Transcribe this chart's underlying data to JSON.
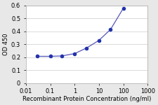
{
  "x_data": [
    0.03,
    0.1,
    0.3,
    1,
    3,
    10,
    30,
    100
  ],
  "y_data": [
    0.207,
    0.207,
    0.21,
    0.228,
    0.27,
    0.33,
    0.415,
    0.578
  ],
  "line_color": "#5555bb",
  "marker_color": "#2233aa",
  "title": "",
  "xlabel": "Recombinant Protein Concentration (ng/ml)",
  "ylabel": "OD 450",
  "xlim": [
    0.01,
    1000
  ],
  "ylim": [
    0,
    0.6
  ],
  "yticks": [
    0,
    0.1,
    0.2,
    0.3,
    0.4,
    0.5,
    0.6
  ],
  "ytick_labels": [
    "0",
    "0.1",
    "0.2",
    "0.3",
    "0.4",
    "0.5",
    "0.6"
  ],
  "xticks": [
    0.01,
    0.1,
    1,
    10,
    100,
    1000
  ],
  "xtick_labels": [
    "0.01",
    "0.1",
    "1",
    "10",
    "100",
    "1000"
  ],
  "background_color": "#e8e8e8",
  "plot_bg": "#ffffff",
  "xlabel_fontsize": 6.0,
  "ylabel_fontsize": 6.0,
  "tick_fontsize": 6.0,
  "marker_size": 3.0,
  "line_width": 0.9,
  "grid_color": "#cccccc",
  "spine_color": "#aaaaaa"
}
